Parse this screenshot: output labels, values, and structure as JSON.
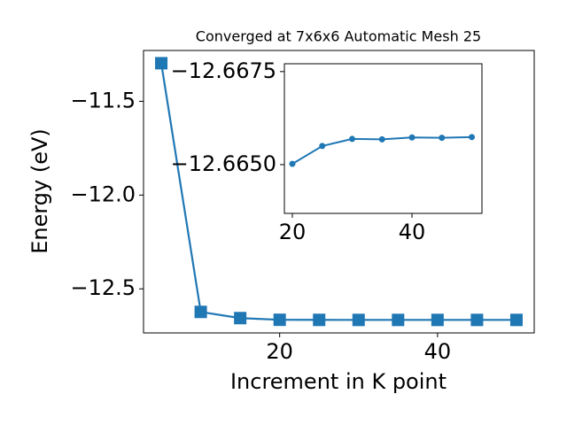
{
  "chart_data": [
    {
      "type": "line",
      "title": "Converged at 7x6x6 Automatic Mesh 25",
      "x_label": "Increment in K point",
      "y_label": "Energy (eV)",
      "x": [
        5,
        10,
        15,
        20,
        25,
        30,
        35,
        40,
        45,
        50
      ],
      "values": [
        -11.297,
        -12.623,
        -12.656,
        -12.665,
        -12.6655,
        -12.6657,
        -12.6657,
        -12.6657,
        -12.6657,
        -12.6657
      ],
      "xlim": [
        2.75,
        52.25
      ],
      "ylim": [
        -12.735,
        -11.229
      ],
      "xticks": [
        20,
        40
      ],
      "yticks": [
        {
          "value": -11.5,
          "label": "−11.5"
        },
        {
          "value": -12.0,
          "label": "−12.0"
        },
        {
          "value": -12.5,
          "label": "−12.5"
        }
      ],
      "color": "#1f77b4",
      "marker": "square"
    },
    {
      "type": "line",
      "x": [
        20,
        25,
        30,
        35,
        40,
        45,
        50
      ],
      "values": [
        -12.66502,
        -12.6655,
        -12.66569,
        -12.66568,
        -12.66573,
        -12.66572,
        -12.66574
      ],
      "xlim": [
        18.67,
        51.7
      ],
      "ylim": [
        -12.66369,
        -12.66771
      ],
      "xticks": [
        20,
        40
      ],
      "yticks": [
        {
          "value": -12.6675,
          "label": "−12.6675"
        },
        {
          "value": -12.665,
          "label": "−12.6650"
        }
      ],
      "color": "#1f77b4",
      "marker": "circle"
    }
  ]
}
